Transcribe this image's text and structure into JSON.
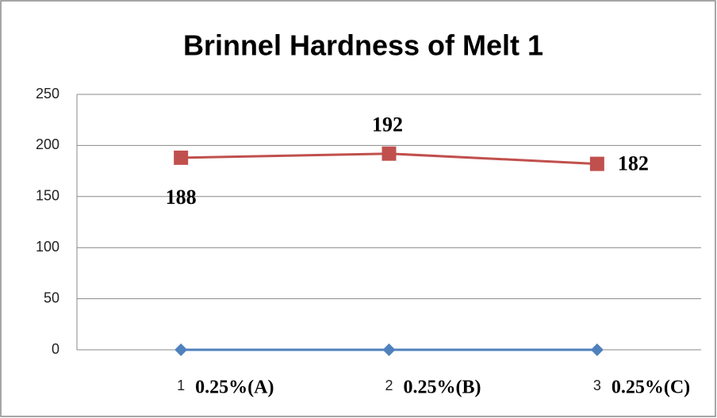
{
  "chart_data": {
    "type": "line",
    "title": "Brinnel Hardness of Melt 1",
    "categories": [
      "1",
      "2",
      "3"
    ],
    "annotations": [
      "0.25%(A)",
      "0.25%(B)",
      "0.25%(C)"
    ],
    "series": [
      {
        "color": "#4f81bd",
        "marker": "diamond",
        "values": [
          0,
          0,
          0
        ]
      },
      {
        "color": "#c0504d",
        "marker": "square",
        "values": [
          188,
          192,
          182
        ],
        "data_labels": true
      }
    ],
    "ylim": [
      0,
      250
    ],
    "yticks": [
      0,
      50,
      100,
      150,
      200,
      250
    ],
    "grid": true
  }
}
